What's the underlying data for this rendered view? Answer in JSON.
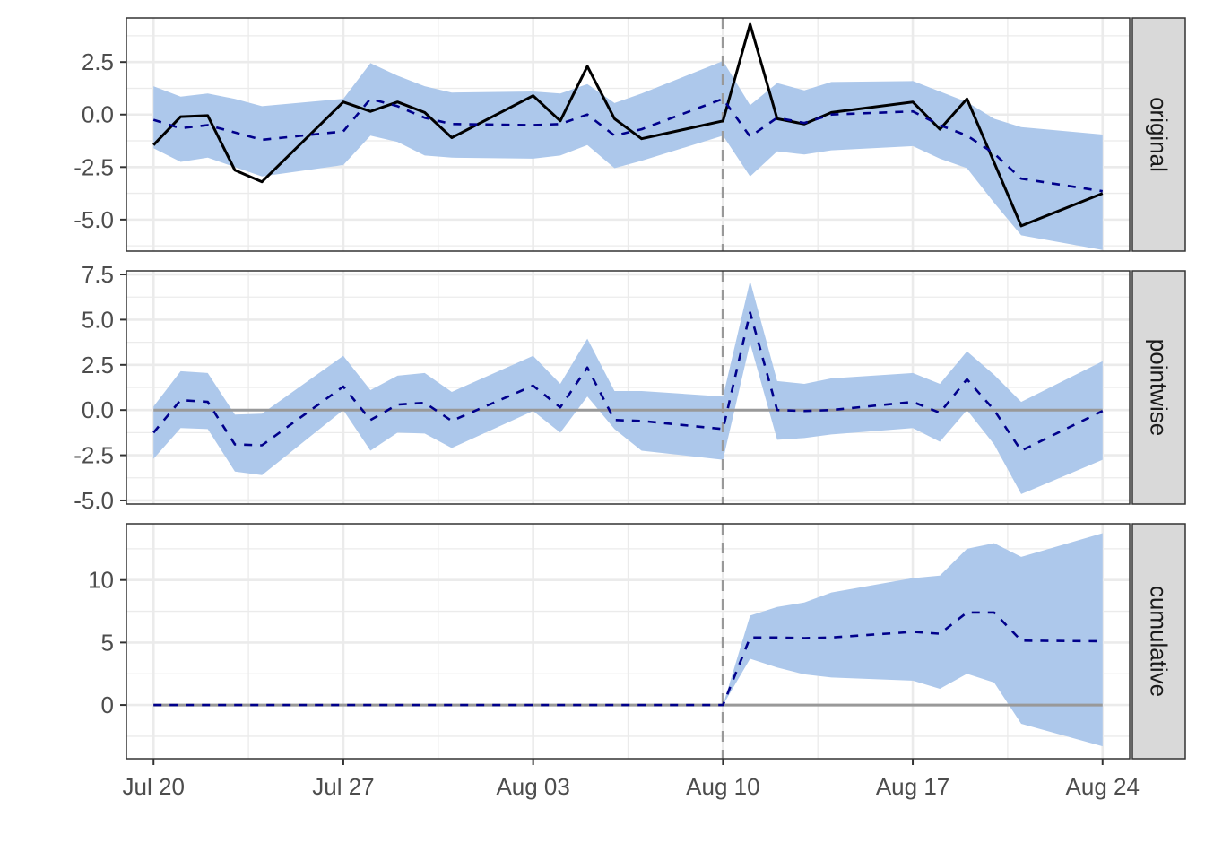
{
  "chart_data": {
    "type": "line",
    "x_axis": {
      "type": "date",
      "range": [
        "2020-07-19",
        "2020-08-25"
      ],
      "ticks": [
        {
          "date": "2020-07-20",
          "label": "Jul 20"
        },
        {
          "date": "2020-07-27",
          "label": "Jul 27"
        },
        {
          "date": "2020-08-03",
          "label": "Aug 03"
        },
        {
          "date": "2020-08-10",
          "label": "Aug 10"
        },
        {
          "date": "2020-08-17",
          "label": "Aug 17"
        },
        {
          "date": "2020-08-24",
          "label": "Aug 24"
        }
      ]
    },
    "intervention_date": "2020-08-10",
    "grid": true,
    "colors": {
      "band": "#adc8eb",
      "prediction": "#00008b",
      "actual": "#000000",
      "zero_line": "#999999",
      "intervention_line": "#999999",
      "strip_background": "#d9d9d9",
      "grid": "#ebebeb"
    },
    "panels": [
      {
        "strip": "original",
        "ylim": [
          -6.5,
          4.6
        ],
        "y_ticks": [
          -5.0,
          -2.5,
          0.0,
          2.5
        ],
        "y_tick_labels": [
          "-5.0",
          "-2.5",
          "0.0",
          "2.5"
        ],
        "zero_line": false,
        "series": [
          {
            "role": "actual",
            "style": "solid",
            "x": [
              "2020-07-20",
              "2020-07-21",
              "2020-07-22",
              "2020-07-23",
              "2020-07-24",
              "2020-07-27",
              "2020-07-28",
              "2020-07-29",
              "2020-07-30",
              "2020-07-31",
              "2020-08-03",
              "2020-08-04",
              "2020-08-05",
              "2020-08-06",
              "2020-08-07",
              "2020-08-10",
              "2020-08-11",
              "2020-08-12",
              "2020-08-13",
              "2020-08-14",
              "2020-08-17",
              "2020-08-18",
              "2020-08-19",
              "2020-08-21",
              "2020-08-24"
            ],
            "y": [
              -1.45,
              -0.1,
              -0.05,
              -2.65,
              -3.2,
              0.6,
              0.15,
              0.6,
              0.1,
              -1.1,
              0.9,
              -0.3,
              2.3,
              -0.2,
              -1.15,
              -0.3,
              4.3,
              -0.2,
              -0.45,
              0.1,
              0.6,
              -0.7,
              0.75,
              -5.3,
              -3.75
            ]
          },
          {
            "role": "prediction",
            "style": "dashed",
            "x": [
              "2020-07-20",
              "2020-07-21",
              "2020-07-22",
              "2020-07-24",
              "2020-07-27",
              "2020-07-28",
              "2020-07-29",
              "2020-07-30",
              "2020-07-31",
              "2020-08-03",
              "2020-08-04",
              "2020-08-05",
              "2020-08-06",
              "2020-08-07",
              "2020-08-10",
              "2020-08-11",
              "2020-08-12",
              "2020-08-13",
              "2020-08-14",
              "2020-08-17",
              "2020-08-18",
              "2020-08-19",
              "2020-08-20",
              "2020-08-21",
              "2020-08-24"
            ],
            "y": [
              -0.25,
              -0.65,
              -0.5,
              -1.2,
              -0.8,
              0.75,
              0.4,
              -0.15,
              -0.45,
              -0.5,
              -0.45,
              0.0,
              -1.0,
              -0.7,
              0.75,
              -1.05,
              -0.15,
              -0.4,
              0.0,
              0.15,
              -0.5,
              -1.0,
              -1.85,
              -3.05,
              -3.65
            ]
          }
        ],
        "band": {
          "x": [
            "2020-07-20",
            "2020-07-21",
            "2020-07-22",
            "2020-07-23",
            "2020-07-24",
            "2020-07-27",
            "2020-07-28",
            "2020-07-29",
            "2020-07-30",
            "2020-07-31",
            "2020-08-03",
            "2020-08-04",
            "2020-08-05",
            "2020-08-06",
            "2020-08-07",
            "2020-08-10",
            "2020-08-11",
            "2020-08-12",
            "2020-08-13",
            "2020-08-14",
            "2020-08-17",
            "2020-08-18",
            "2020-08-19",
            "2020-08-20",
            "2020-08-21",
            "2020-08-24"
          ],
          "lower": [
            -1.6,
            -2.25,
            -2.05,
            -2.5,
            -2.95,
            -2.4,
            -1.0,
            -1.3,
            -1.95,
            -2.05,
            -2.1,
            -1.95,
            -1.45,
            -2.55,
            -2.2,
            -1.0,
            -2.95,
            -1.75,
            -1.9,
            -1.7,
            -1.5,
            -2.1,
            -2.55,
            -4.2,
            -5.75,
            -6.45
          ],
          "upper": [
            1.35,
            0.85,
            1.0,
            0.75,
            0.4,
            0.75,
            2.45,
            1.85,
            1.35,
            1.05,
            1.1,
            1.0,
            1.45,
            0.55,
            1.0,
            2.55,
            0.45,
            1.5,
            1.15,
            1.55,
            1.6,
            1.1,
            0.6,
            -0.2,
            -0.6,
            -0.95
          ]
        }
      },
      {
        "strip": "pointwise",
        "ylim": [
          -5.2,
          7.7
        ],
        "y_ticks": [
          -5.0,
          -2.5,
          0.0,
          2.5,
          5.0,
          7.5
        ],
        "y_tick_labels": [
          "-5.0",
          "-2.5",
          "0.0",
          "2.5",
          "5.0",
          "7.5"
        ],
        "zero_line": true,
        "series": [
          {
            "role": "prediction",
            "style": "dashed",
            "x": [
              "2020-07-20",
              "2020-07-21",
              "2020-07-22",
              "2020-07-23",
              "2020-07-24",
              "2020-07-27",
              "2020-07-28",
              "2020-07-29",
              "2020-07-30",
              "2020-07-31",
              "2020-08-03",
              "2020-08-04",
              "2020-08-05",
              "2020-08-06",
              "2020-08-07",
              "2020-08-10",
              "2020-08-11",
              "2020-08-12",
              "2020-08-13",
              "2020-08-14",
              "2020-08-17",
              "2020-08-18",
              "2020-08-19",
              "2020-08-20",
              "2020-08-21",
              "2020-08-24"
            ],
            "y": [
              -1.25,
              0.55,
              0.45,
              -1.9,
              -1.95,
              1.3,
              -0.55,
              0.3,
              0.4,
              -0.6,
              1.35,
              0.15,
              2.35,
              -0.55,
              -0.6,
              -1.05,
              5.4,
              0.0,
              -0.05,
              0.0,
              0.45,
              -0.15,
              1.7,
              0.0,
              -2.25,
              -0.05
            ]
          }
        ],
        "band": {
          "x": [
            "2020-07-20",
            "2020-07-21",
            "2020-07-22",
            "2020-07-23",
            "2020-07-24",
            "2020-07-27",
            "2020-07-28",
            "2020-07-29",
            "2020-07-30",
            "2020-07-31",
            "2020-08-03",
            "2020-08-04",
            "2020-08-05",
            "2020-08-06",
            "2020-08-07",
            "2020-08-10",
            "2020-08-11",
            "2020-08-12",
            "2020-08-13",
            "2020-08-14",
            "2020-08-17",
            "2020-08-18",
            "2020-08-19",
            "2020-08-20",
            "2020-08-21",
            "2020-08-24"
          ],
          "lower": [
            -2.7,
            -1.0,
            -1.05,
            -3.4,
            -3.6,
            0.0,
            -2.25,
            -1.25,
            -1.3,
            -2.1,
            -0.05,
            -1.25,
            0.75,
            -1.05,
            -2.25,
            -2.75,
            3.7,
            -1.65,
            -1.55,
            -1.35,
            -1.0,
            -1.75,
            0.0,
            -1.9,
            -4.65,
            -2.75
          ],
          "upper": [
            0.2,
            2.15,
            2.05,
            -0.25,
            -0.2,
            3.0,
            1.1,
            1.9,
            2.05,
            1.0,
            3.0,
            1.45,
            3.95,
            1.05,
            1.05,
            0.75,
            7.15,
            1.6,
            1.45,
            1.75,
            2.05,
            1.45,
            3.25,
            1.95,
            0.45,
            2.7
          ]
        }
      },
      {
        "strip": "cumulative",
        "ylim": [
          -4.3,
          14.5
        ],
        "y_ticks": [
          0,
          5,
          10
        ],
        "y_tick_labels": [
          "0",
          "5",
          "10"
        ],
        "zero_line": true,
        "series": [
          {
            "role": "prediction",
            "style": "dashed",
            "x": [
              "2020-07-20",
              "2020-08-10",
              "2020-08-11",
              "2020-08-12",
              "2020-08-13",
              "2020-08-14",
              "2020-08-17",
              "2020-08-18",
              "2020-08-19",
              "2020-08-20",
              "2020-08-21",
              "2020-08-24"
            ],
            "y": [
              0,
              0,
              5.4,
              5.4,
              5.35,
              5.4,
              5.85,
              5.7,
              7.4,
              7.4,
              5.15,
              5.1
            ]
          }
        ],
        "band": {
          "x": [
            "2020-07-20",
            "2020-08-10",
            "2020-08-11",
            "2020-08-12",
            "2020-08-13",
            "2020-08-14",
            "2020-08-17",
            "2020-08-18",
            "2020-08-19",
            "2020-08-20",
            "2020-08-21",
            "2020-08-24"
          ],
          "lower": [
            0,
            0,
            3.7,
            3.0,
            2.45,
            2.2,
            1.95,
            1.3,
            2.5,
            1.8,
            -1.5,
            -3.3
          ],
          "upper": [
            0,
            0,
            7.15,
            7.85,
            8.2,
            9.0,
            10.15,
            10.35,
            12.5,
            12.95,
            11.85,
            13.75
          ]
        }
      }
    ]
  }
}
